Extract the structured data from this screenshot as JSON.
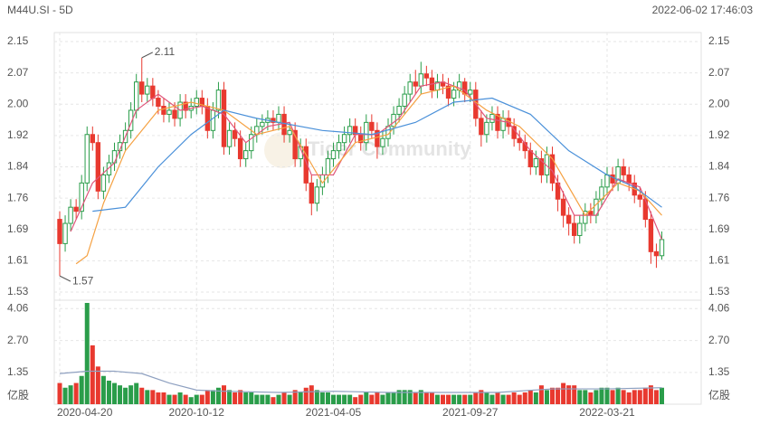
{
  "chart_data": {
    "type": "candlestick",
    "title": "M44U.SI - 5D",
    "timestamp": "2022-06-02 17:46:03",
    "watermark": "Tiger Community",
    "up_color": "#2a9d4a",
    "down_color": "#e8392f",
    "grid": true,
    "categories": [
      "2020-04-20",
      null,
      null,
      null,
      null,
      null,
      null,
      null,
      null,
      null,
      null,
      null,
      null,
      null,
      null,
      null,
      null,
      null,
      null,
      null,
      null,
      null,
      null,
      null,
      null,
      "2020-10-12",
      null,
      null,
      null,
      null,
      null,
      null,
      null,
      null,
      null,
      null,
      null,
      null,
      null,
      null,
      null,
      null,
      null,
      null,
      null,
      null,
      null,
      null,
      null,
      null,
      "2021-04-05",
      null,
      null,
      null,
      null,
      null,
      null,
      null,
      null,
      null,
      null,
      null,
      null,
      null,
      null,
      null,
      null,
      null,
      null,
      null,
      null,
      null,
      null,
      null,
      null,
      "2021-09-27",
      null,
      null,
      null,
      null,
      null,
      null,
      null,
      null,
      null,
      null,
      null,
      null,
      null,
      null,
      null,
      null,
      null,
      null,
      null,
      null,
      null,
      null,
      null,
      null,
      "2022-03-21",
      null,
      null,
      null,
      null,
      null,
      null,
      null,
      null,
      null,
      null
    ],
    "open": [
      1.71,
      1.65,
      1.7,
      1.74,
      1.73,
      1.8,
      1.92,
      1.9,
      1.78,
      1.82,
      1.85,
      1.88,
      1.9,
      1.93,
      1.98,
      2.05,
      2.02,
      2.04,
      2.01,
      1.99,
      1.97,
      1.98,
      1.96,
      2.0,
      1.98,
      1.99,
      2.01,
      1.99,
      1.93,
      1.98,
      2.03,
      1.89,
      1.93,
      1.91,
      1.86,
      1.88,
      1.92,
      1.94,
      1.95,
      1.96,
      1.95,
      1.97,
      1.92,
      1.93,
      1.86,
      1.89,
      1.8,
      1.75,
      1.79,
      1.82,
      1.86,
      1.88,
      1.9,
      1.92,
      1.94,
      1.92,
      1.9,
      1.95,
      1.93,
      1.89,
      1.91,
      1.94,
      1.97,
      1.99,
      2.02,
      2.05,
      2.04,
      2.07,
      2.06,
      2.03,
      2.05,
      2.04,
      2.01,
      2.03,
      2.05,
      2.02,
      2.03,
      1.96,
      1.92,
      1.95,
      1.97,
      1.93,
      1.96,
      1.94,
      1.91,
      1.9,
      1.88,
      1.84,
      1.86,
      1.82,
      1.87,
      1.8,
      1.76,
      1.72,
      1.7,
      1.67,
      1.7,
      1.73,
      1.72,
      1.76,
      1.79,
      1.82,
      1.8,
      1.84,
      1.82,
      1.8,
      1.77,
      1.76,
      1.71,
      1.63,
      1.62
    ],
    "high": [
      1.73,
      1.72,
      1.76,
      1.76,
      1.82,
      1.94,
      1.94,
      1.92,
      1.84,
      1.87,
      1.9,
      1.92,
      1.95,
      2.0,
      2.07,
      2.11,
      2.06,
      2.06,
      2.03,
      2.01,
      2.0,
      2.0,
      2.02,
      2.02,
      2.01,
      2.03,
      2.03,
      2.01,
      2.0,
      2.05,
      2.05,
      1.95,
      1.95,
      1.93,
      1.9,
      1.94,
      1.96,
      1.97,
      1.98,
      1.98,
      1.99,
      1.99,
      1.95,
      1.95,
      1.91,
      1.91,
      1.82,
      1.81,
      1.84,
      1.88,
      1.9,
      1.92,
      1.94,
      1.96,
      1.96,
      1.94,
      1.97,
      1.97,
      1.95,
      1.93,
      1.96,
      1.99,
      2.01,
      2.04,
      2.07,
      2.08,
      2.1,
      2.09,
      2.08,
      2.07,
      2.07,
      2.06,
      2.05,
      2.07,
      2.06,
      2.05,
      2.05,
      1.98,
      1.97,
      1.99,
      1.99,
      1.98,
      1.98,
      1.96,
      1.93,
      1.92,
      1.9,
      1.88,
      1.88,
      1.89,
      1.89,
      1.82,
      1.78,
      1.74,
      1.72,
      1.72,
      1.75,
      1.75,
      1.78,
      1.81,
      1.84,
      1.84,
      1.86,
      1.86,
      1.84,
      1.82,
      1.79,
      1.78,
      1.73,
      1.65,
      1.68
    ],
    "low": [
      1.57,
      1.63,
      1.68,
      1.71,
      1.71,
      1.78,
      1.88,
      1.76,
      1.76,
      1.8,
      1.83,
      1.86,
      1.88,
      1.91,
      1.96,
      2.0,
      2.0,
      1.99,
      1.97,
      1.95,
      1.95,
      1.94,
      1.94,
      1.96,
      1.96,
      1.97,
      1.97,
      1.91,
      1.91,
      1.96,
      1.87,
      1.87,
      1.89,
      1.84,
      1.84,
      1.86,
      1.9,
      1.92,
      1.93,
      1.93,
      1.93,
      1.9,
      1.9,
      1.84,
      1.84,
      1.78,
      1.72,
      1.73,
      1.77,
      1.8,
      1.84,
      1.86,
      1.88,
      1.9,
      1.9,
      1.88,
      1.88,
      1.91,
      1.86,
      1.87,
      1.89,
      1.92,
      1.95,
      1.97,
      2.0,
      2.02,
      2.02,
      2.04,
      2.01,
      2.01,
      2.02,
      1.99,
      1.99,
      2.01,
      2.0,
      2.0,
      1.94,
      1.89,
      1.9,
      1.93,
      1.91,
      1.91,
      1.92,
      1.89,
      1.88,
      1.86,
      1.82,
      1.82,
      1.8,
      1.8,
      1.78,
      1.73,
      1.69,
      1.67,
      1.65,
      1.65,
      1.68,
      1.7,
      1.7,
      1.74,
      1.77,
      1.78,
      1.78,
      1.8,
      1.78,
      1.75,
      1.74,
      1.69,
      1.6,
      1.59,
      1.61
    ],
    "close": [
      1.65,
      1.7,
      1.74,
      1.73,
      1.8,
      1.92,
      1.9,
      1.78,
      1.82,
      1.85,
      1.88,
      1.9,
      1.93,
      1.98,
      2.05,
      2.02,
      2.04,
      2.01,
      1.99,
      1.97,
      1.98,
      1.96,
      2.0,
      1.98,
      1.99,
      2.01,
      1.99,
      1.93,
      1.98,
      2.03,
      1.89,
      1.93,
      1.91,
      1.86,
      1.88,
      1.92,
      1.94,
      1.95,
      1.96,
      1.95,
      1.97,
      1.92,
      1.93,
      1.86,
      1.89,
      1.8,
      1.75,
      1.79,
      1.82,
      1.86,
      1.88,
      1.9,
      1.92,
      1.94,
      1.92,
      1.9,
      1.95,
      1.93,
      1.89,
      1.91,
      1.94,
      1.97,
      1.99,
      2.02,
      2.05,
      2.04,
      2.07,
      2.06,
      2.03,
      2.05,
      2.04,
      2.01,
      2.03,
      2.05,
      2.02,
      2.03,
      1.96,
      1.92,
      1.95,
      1.97,
      1.93,
      1.96,
      1.94,
      1.91,
      1.9,
      1.88,
      1.84,
      1.86,
      1.82,
      1.87,
      1.8,
      1.76,
      1.72,
      1.7,
      1.67,
      1.7,
      1.73,
      1.72,
      1.76,
      1.79,
      1.82,
      1.8,
      1.84,
      1.82,
      1.8,
      1.77,
      1.76,
      1.71,
      1.63,
      1.62,
      1.66
    ],
    "volume": [
      0.9,
      0.7,
      0.8,
      0.9,
      1.2,
      4.3,
      2.5,
      1.6,
      1.2,
      1.0,
      0.9,
      0.8,
      0.7,
      0.8,
      0.9,
      0.7,
      0.6,
      0.6,
      0.5,
      0.5,
      0.4,
      0.4,
      0.5,
      0.4,
      0.3,
      0.4,
      0.4,
      0.6,
      0.6,
      0.7,
      0.8,
      0.6,
      0.5,
      0.6,
      0.5,
      0.5,
      0.4,
      0.4,
      0.4,
      0.3,
      0.4,
      0.5,
      0.4,
      0.6,
      0.5,
      0.7,
      0.8,
      0.6,
      0.5,
      0.5,
      0.4,
      0.4,
      0.4,
      0.4,
      0.3,
      0.4,
      0.5,
      0.4,
      0.5,
      0.4,
      0.5,
      0.5,
      0.6,
      0.6,
      0.6,
      0.5,
      0.6,
      0.5,
      0.5,
      0.4,
      0.4,
      0.4,
      0.4,
      0.4,
      0.4,
      0.4,
      0.5,
      0.6,
      0.5,
      0.4,
      0.5,
      0.4,
      0.4,
      0.5,
      0.4,
      0.5,
      0.6,
      0.5,
      0.8,
      0.6,
      0.7,
      0.7,
      0.9,
      0.8,
      0.8,
      0.6,
      0.6,
      0.5,
      0.6,
      0.7,
      0.7,
      0.6,
      0.7,
      0.6,
      0.5,
      0.6,
      0.6,
      0.7,
      0.8,
      0.6,
      0.7
    ],
    "ylim": [
      1.53,
      2.15
    ],
    "yticks": [
      1.53,
      {
        "value": 1.6075,
        "label": "1.61"
      },
      {
        "value": 1.685,
        "label": "1.69"
      },
      {
        "value": 1.7625,
        "label": "1.76"
      },
      1.84,
      {
        "value": 1.9175,
        "label": "1.92"
      },
      {
        "value": 1.995,
        "label": "2.00"
      },
      {
        "value": 2.0725,
        "label": "2.07"
      },
      2.15
    ],
    "vlim": [
      0,
      4.3
    ],
    "vticks": [
      1.35,
      {
        "value": 2.7,
        "label": "2.70"
      },
      4.06
    ],
    "volume_unit": "亿股",
    "price_lines": [
      {
        "color": "#e0557a",
        "x": [
          2,
          6,
          10,
          14,
          18,
          22,
          26,
          30,
          34,
          38,
          42,
          46,
          50,
          54,
          58,
          62,
          66,
          70,
          74,
          78,
          82,
          86,
          90,
          94,
          98,
          102,
          106,
          110
        ],
        "values": [
          1.68,
          1.8,
          1.85,
          1.98,
          2.02,
          1.98,
          1.99,
          1.97,
          1.9,
          1.94,
          1.95,
          1.82,
          1.82,
          1.92,
          1.92,
          1.96,
          2.04,
          2.05,
          2.03,
          1.96,
          1.95,
          1.88,
          1.83,
          1.72,
          1.72,
          1.81,
          1.79,
          1.66
        ]
      },
      {
        "color": "#f5a142",
        "x": [
          3,
          5,
          8,
          12,
          18,
          24,
          30,
          36,
          42,
          48,
          54,
          60,
          66,
          72,
          78,
          84,
          90,
          96,
          102,
          106,
          110
        ],
        "values": [
          1.6,
          1.62,
          1.75,
          1.88,
          1.98,
          2.0,
          1.98,
          1.92,
          1.94,
          1.8,
          1.9,
          1.92,
          2.02,
          2.04,
          1.98,
          1.94,
          1.86,
          1.72,
          1.8,
          1.78,
          1.72
        ]
      },
      {
        "color": "#4a90d9",
        "x": [
          6,
          12,
          18,
          24,
          30,
          36,
          48,
          57,
          65,
          72,
          79,
          86,
          93,
          100,
          105,
          110
        ],
        "values": [
          1.73,
          1.74,
          1.84,
          1.92,
          1.98,
          1.96,
          1.93,
          1.92,
          1.95,
          2.0,
          2.01,
          1.97,
          1.88,
          1.82,
          1.79,
          1.74
        ]
      }
    ],
    "volume_lines": [
      {
        "color": "#8ea0c0",
        "x": [
          0,
          5,
          10,
          15,
          20,
          25,
          30,
          40,
          50,
          60,
          70,
          80,
          90,
          100,
          110
        ],
        "values": [
          1.3,
          1.4,
          1.4,
          1.3,
          0.9,
          0.6,
          0.55,
          0.5,
          0.55,
          0.5,
          0.5,
          0.5,
          0.65,
          0.65,
          0.7
        ]
      }
    ],
    "annotations": [
      {
        "text": "2.11",
        "x": 15,
        "value": 2.11
      },
      {
        "text": "1.57",
        "x": 0,
        "value": 1.57
      }
    ]
  }
}
